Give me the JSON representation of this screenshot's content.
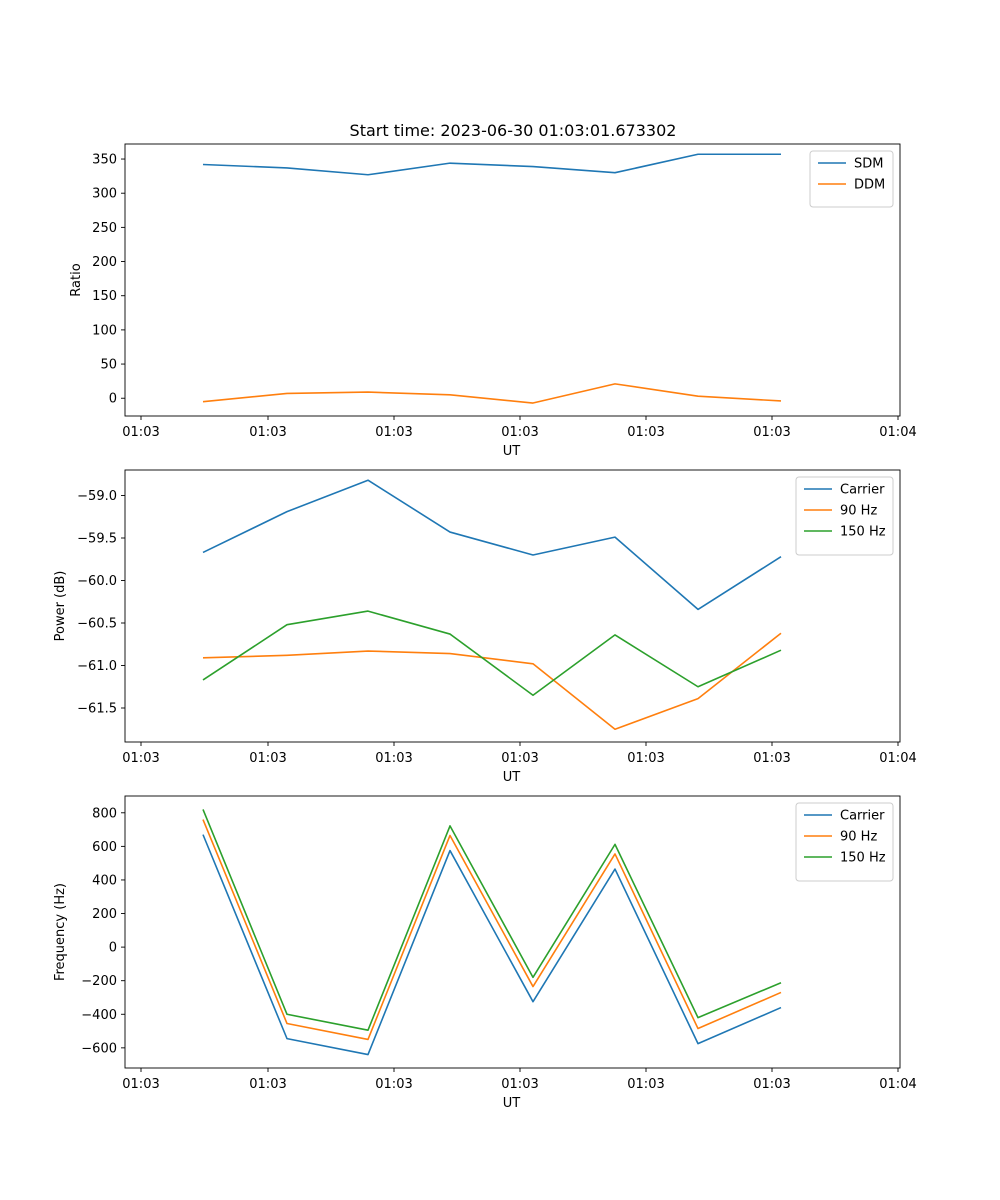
{
  "title": "Start time: 2023-06-30 01:03:01.673302",
  "chart_data": [
    {
      "type": "line",
      "title": "Start time: 2023-06-30 01:03:01.673302",
      "xlabel": "UT",
      "ylabel": "Ratio",
      "x_tick_labels": [
        "01:03",
        "01:03",
        "01:03",
        "01:03",
        "01:03",
        "01:03",
        "01:04"
      ],
      "y_ticks": [
        0,
        50,
        100,
        150,
        200,
        250,
        300,
        350
      ],
      "ylim": [
        -26,
        372
      ],
      "legend": "top-right",
      "series": [
        {
          "name": "SDM",
          "color": "#1f77b4",
          "values": [
            342,
            337,
            327,
            344,
            339,
            330,
            357,
            357
          ]
        },
        {
          "name": "DDM",
          "color": "#ff7f0e",
          "values": [
            -5,
            7,
            9,
            5,
            -7,
            21,
            3,
            -4
          ]
        }
      ]
    },
    {
      "type": "line",
      "xlabel": "UT",
      "ylabel": "Power (dB)",
      "x_tick_labels": [
        "01:03",
        "01:03",
        "01:03",
        "01:03",
        "01:03",
        "01:03",
        "01:04"
      ],
      "y_ticks": [
        -61.5,
        -61.0,
        -60.5,
        -60.0,
        -59.5,
        -59.0
      ],
      "y_tick_labels": [
        "−61.5",
        "−61.0",
        "−60.5",
        "−60.0",
        "−59.5",
        "−59.0"
      ],
      "ylim": [
        -61.9,
        -58.7
      ],
      "legend": "top-right",
      "series": [
        {
          "name": "Carrier",
          "color": "#1f77b4",
          "values": [
            -59.67,
            -59.19,
            -58.82,
            -59.43,
            -59.7,
            -59.49,
            -60.34,
            -59.72
          ]
        },
        {
          "name": "90 Hz",
          "color": "#ff7f0e",
          "values": [
            -60.91,
            -60.88,
            -60.83,
            -60.86,
            -60.98,
            -61.75,
            -61.39,
            -60.62
          ]
        },
        {
          "name": "150 Hz",
          "color": "#2ca02c",
          "values": [
            -61.17,
            -60.52,
            -60.36,
            -60.63,
            -61.35,
            -60.64,
            -61.25,
            -60.82
          ]
        }
      ]
    },
    {
      "type": "line",
      "xlabel": "UT",
      "ylabel": "Frequency (Hz)",
      "x_tick_labels": [
        "01:03",
        "01:03",
        "01:03",
        "01:03",
        "01:03",
        "01:03",
        "01:04"
      ],
      "y_ticks": [
        -600,
        -400,
        -200,
        0,
        200,
        400,
        600,
        800
      ],
      "y_tick_labels": [
        "−600",
        "−400",
        "−200",
        "0",
        "200",
        "400",
        "600",
        "800"
      ],
      "ylim": [
        -720,
        900
      ],
      "legend": "top-right",
      "series": [
        {
          "name": "Carrier",
          "color": "#1f77b4",
          "values": [
            670,
            -545,
            -640,
            575,
            -325,
            465,
            -575,
            -360
          ]
        },
        {
          "name": "90 Hz",
          "color": "#ff7f0e",
          "values": [
            760,
            -455,
            -550,
            665,
            -235,
            555,
            -485,
            -270
          ]
        },
        {
          "name": "150 Hz",
          "color": "#2ca02c",
          "values": [
            820,
            -400,
            -495,
            722,
            -180,
            612,
            -420,
            -212
          ]
        }
      ]
    }
  ]
}
